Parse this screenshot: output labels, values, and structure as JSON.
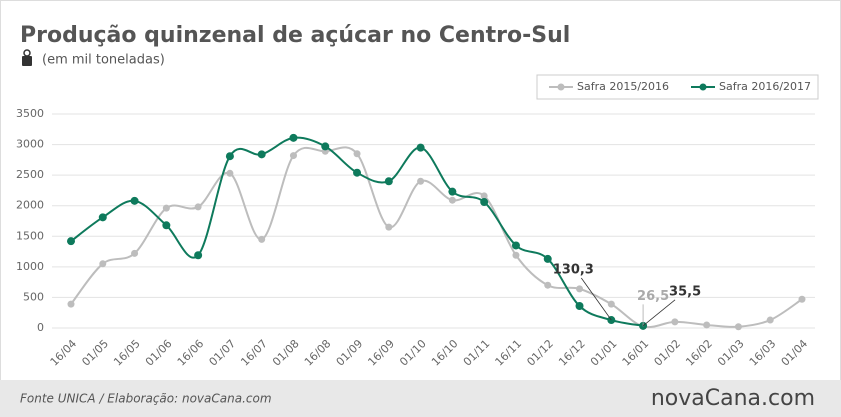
{
  "chart_data": {
    "type": "line",
    "title": "Produção quinzenal de açúcar no Centro-Sul",
    "subtitle": "(em mil toneladas)",
    "categories": [
      "16/04",
      "01/05",
      "16/05",
      "01/06",
      "16/06",
      "01/07",
      "16/07",
      "01/08",
      "16/08",
      "01/09",
      "16/09",
      "01/10",
      "16/10",
      "01/11",
      "16/11",
      "01/12",
      "16/12",
      "01/01",
      "16/01",
      "01/02",
      "16/02",
      "01/03",
      "16/03",
      "01/04"
    ],
    "series": [
      {
        "name": "Safra 2015/2016",
        "color": "#bdbdbd",
        "values": [
          390,
          1050,
          1220,
          1960,
          1980,
          2530,
          1450,
          2820,
          2890,
          2850,
          1650,
          2400,
          2090,
          2160,
          1190,
          700,
          640,
          390,
          26.5,
          100,
          50,
          20,
          130,
          470
        ],
        "value_labels": [
          null,
          null,
          null,
          null,
          null,
          null,
          null,
          null,
          null,
          null,
          null,
          null,
          null,
          null,
          null,
          null,
          null,
          null,
          "26,5",
          null,
          null,
          null,
          null,
          null
        ]
      },
      {
        "name": "Safra 2016/2017",
        "color": "#0e7a5c",
        "values": [
          1420,
          1810,
          2080,
          1680,
          1190,
          2810,
          2840,
          3110,
          2970,
          2540,
          2400,
          2950,
          2230,
          2060,
          1350,
          1130,
          360,
          130.3,
          35.5,
          null,
          null,
          null,
          null,
          null
        ],
        "value_labels": [
          null,
          null,
          null,
          null,
          null,
          null,
          null,
          null,
          null,
          null,
          null,
          null,
          null,
          null,
          null,
          null,
          null,
          "130,3",
          "35,5",
          null,
          null,
          null,
          null,
          null
        ]
      }
    ],
    "ylim": [
      0,
      3500
    ],
    "yticks": [
      0,
      500,
      1000,
      1500,
      2000,
      2500,
      3000,
      3500
    ],
    "grid": true,
    "legend": "top-right",
    "footer": {
      "source": "Fonte UNICA / Elaboração: novaCana.com",
      "logo": "novaCana.com"
    }
  }
}
